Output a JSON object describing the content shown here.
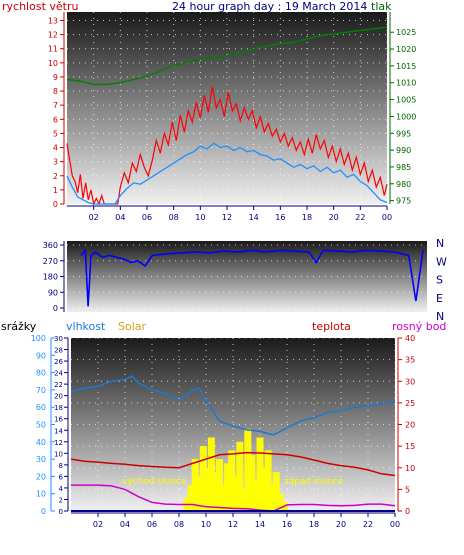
{
  "page": {
    "title": "24 hour graph day : 19 March 2014"
  },
  "colors": {
    "wind_speed": "#ff0000",
    "wind_gust": "#ff0000",
    "wind_avg": "#1e90ff",
    "pressure": "#008000",
    "direction": "#0000ff",
    "rain": "#00008b",
    "humidity": "#1e78d2",
    "solar": "#ffff00",
    "temperature": "#cc0000",
    "dew_point": "#cc00cc",
    "axis_left_top": "#cc0000",
    "axis_right_top": "#006400",
    "axis_left_bottom": "#1e90ff"
  },
  "chart_data": [
    {
      "type": "line",
      "panel": "wind-pressure",
      "title": "24 hour graph day : 19 March 2014",
      "left_axis_label": "rychlost větru",
      "right_axis_label": "tlak",
      "grid": true,
      "x_ticks": [
        "02",
        "04",
        "06",
        "08",
        "10",
        "12",
        "14",
        "16",
        "18",
        "20",
        "22",
        "00"
      ],
      "left_ticks": [
        0,
        1,
        2,
        3,
        4,
        5,
        6,
        7,
        8,
        9,
        10,
        11,
        12,
        13
      ],
      "right_ticks": [
        975,
        980,
        985,
        990,
        995,
        1000,
        1005,
        1010,
        1015,
        1020,
        1025
      ],
      "xlim": [
        0,
        24
      ],
      "ylim_left": [
        0,
        13.6
      ],
      "ylim_right": [
        974,
        1031
      ],
      "series": [
        {
          "name": "rychlost větru",
          "x": [
            0,
            0.2,
            0.4,
            0.6,
            0.8,
            1,
            1.2,
            1.4,
            1.6,
            1.8,
            2,
            2.2,
            2.4,
            2.6,
            2.8,
            3,
            3.2,
            3.4,
            3.6,
            3.8,
            4,
            4.3,
            4.6,
            4.9,
            5.2,
            5.5,
            5.8,
            6.1,
            6.4,
            6.7,
            7,
            7.3,
            7.6,
            7.9,
            8.2,
            8.5,
            8.8,
            9.1,
            9.4,
            9.7,
            10,
            10.3,
            10.6,
            10.9,
            11.2,
            11.5,
            11.8,
            12.1,
            12.4,
            12.7,
            13,
            13.3,
            13.6,
            13.9,
            14.2,
            14.5,
            14.8,
            15.1,
            15.4,
            15.7,
            16,
            16.3,
            16.6,
            16.9,
            17.2,
            17.5,
            17.8,
            18.1,
            18.4,
            18.7,
            19,
            19.3,
            19.6,
            19.9,
            20.2,
            20.5,
            20.8,
            21.1,
            21.4,
            21.7,
            22,
            22.3,
            22.6,
            22.9,
            23.2,
            23.5,
            23.8,
            24
          ],
          "values": [
            4.3,
            3.1,
            2.0,
            1.6,
            0.8,
            2.1,
            0.4,
            1.5,
            0.3,
            1.0,
            0.0,
            0.4,
            0.0,
            0.6,
            0.0,
            0.0,
            0.0,
            0.0,
            0.0,
            0.0,
            1.2,
            2.2,
            1.5,
            2.9,
            2.3,
            3.5,
            2.6,
            2.0,
            3.1,
            4.5,
            3.6,
            5.0,
            4.2,
            5.8,
            4.5,
            6.3,
            5.1,
            6.6,
            5.8,
            7.2,
            6.1,
            7.7,
            6.5,
            8.3,
            6.8,
            7.4,
            6.2,
            7.9,
            6.6,
            7.1,
            5.9,
            6.8,
            6.0,
            6.6,
            5.4,
            6.2,
            5.1,
            5.7,
            4.8,
            5.3,
            4.4,
            5.0,
            4.1,
            4.7,
            3.8,
            4.4,
            3.5,
            4.6,
            3.6,
            4.9,
            3.9,
            4.5,
            3.3,
            4.1,
            3.0,
            3.9,
            2.8,
            3.6,
            2.4,
            3.3,
            2.1,
            2.9,
            1.6,
            2.4,
            1.2,
            1.9,
            0.6,
            1.4
          ]
        },
        {
          "name": "průměr",
          "x": [
            0,
            0.4,
            0.8,
            1.2,
            1.6,
            2,
            2.4,
            2.8,
            3.2,
            3.6,
            4,
            4.5,
            5,
            5.5,
            6,
            6.5,
            7,
            7.5,
            8,
            8.5,
            9,
            9.5,
            10,
            10.5,
            11,
            11.5,
            12,
            12.5,
            13,
            13.5,
            14,
            14.5,
            15,
            15.5,
            16,
            16.5,
            17,
            17.5,
            18,
            18.5,
            19,
            19.5,
            20,
            20.5,
            21,
            21.5,
            22,
            22.5,
            23,
            23.5,
            24
          ],
          "values": [
            2.0,
            1.2,
            0.5,
            0.3,
            0.1,
            0.0,
            0.0,
            0.0,
            0.0,
            0.0,
            0.6,
            1.1,
            1.5,
            1.4,
            1.7,
            2.0,
            2.3,
            2.6,
            2.9,
            3.2,
            3.5,
            3.7,
            4.1,
            3.9,
            4.3,
            4.0,
            4.1,
            3.8,
            4.0,
            3.7,
            3.8,
            3.5,
            3.4,
            3.1,
            3.2,
            2.9,
            2.6,
            2.8,
            2.5,
            2.7,
            2.3,
            2.6,
            2.2,
            2.4,
            1.9,
            2.1,
            1.6,
            1.3,
            0.8,
            0.3,
            0.1
          ]
        },
        {
          "name": "tlak",
          "axis": "right",
          "x": [
            0,
            1,
            2,
            3,
            4,
            5,
            6,
            7,
            8,
            9,
            10,
            11,
            12,
            13,
            14,
            15,
            16,
            17,
            18,
            19,
            20,
            21,
            22,
            23,
            24
          ],
          "values": [
            1011,
            1010.5,
            1009.5,
            1009.5,
            1010,
            1011,
            1012,
            1013.5,
            1015,
            1016,
            1017,
            1017.5,
            1018,
            1019,
            1020,
            1021,
            1021.5,
            1022,
            1023,
            1024,
            1024.5,
            1025,
            1025.5,
            1026,
            1026.5
          ]
        }
      ]
    },
    {
      "type": "line",
      "panel": "direction",
      "right_labels": [
        "N",
        "W",
        "S",
        "E",
        "N"
      ],
      "left_ticks": [
        0,
        90,
        180,
        270,
        360
      ],
      "xlim": [
        0,
        24
      ],
      "ylim": [
        0,
        360
      ],
      "grid": true,
      "series": [
        {
          "name": "směr",
          "x": [
            0,
            0.3,
            0.5,
            0.7,
            1,
            1.5,
            2,
            2.5,
            3,
            3.5,
            4,
            4.5,
            5,
            6,
            7,
            8,
            9,
            10,
            11,
            12,
            12.5,
            13,
            14,
            15,
            16,
            16.5,
            17,
            18,
            19,
            20,
            21,
            22,
            23,
            23.5,
            24
          ],
          "values": [
            300,
            330,
            10,
            300,
            320,
            290,
            300,
            290,
            280,
            260,
            270,
            240,
            300,
            310,
            315,
            320,
            315,
            325,
            320,
            330,
            325,
            320,
            330,
            325,
            320,
            260,
            330,
            325,
            320,
            330,
            325,
            320,
            300,
            40,
            330
          ]
        }
      ]
    },
    {
      "type": "line",
      "panel": "humidity-solar-temperature",
      "labels": [
        "srážky",
        "vlhkost",
        "Solar",
        "teplota",
        "rosný bod"
      ],
      "annotations": [
        "východ slunce",
        "západ slunce"
      ],
      "x_ticks": [
        "02",
        "04",
        "06",
        "08",
        "10",
        "12",
        "14",
        "16",
        "18",
        "20",
        "22",
        "00"
      ],
      "rain_ticks": [
        0,
        10,
        20,
        30,
        40,
        50,
        60,
        70,
        80,
        90,
        100
      ],
      "temp_ticks_left": [
        0,
        2,
        4,
        6,
        8,
        10,
        12,
        14,
        16,
        18,
        20,
        22,
        24,
        26,
        28,
        30
      ],
      "right_ticks": [
        0,
        5,
        10,
        15,
        20,
        25,
        30,
        35,
        40
      ],
      "xlim": [
        0,
        24
      ],
      "grid": true,
      "series": [
        {
          "name": "vlhkost",
          "axis": "percent",
          "x": [
            0,
            1,
            2,
            3,
            4,
            4.5,
            5,
            5.5,
            6,
            7,
            7.5,
            8,
            8.5,
            9,
            9.5,
            10,
            10.5,
            11,
            12,
            13,
            14,
            15,
            16,
            17,
            18,
            19,
            20,
            21,
            22,
            23,
            24
          ],
          "values": [
            69,
            71,
            72,
            75,
            76,
            78,
            74,
            72,
            70,
            68,
            66,
            64,
            66,
            70,
            71,
            64,
            58,
            52,
            49,
            47,
            46,
            44,
            48,
            52,
            54,
            57,
            58,
            60,
            61,
            62,
            63
          ]
        },
        {
          "name": "teplota",
          "axis": "right",
          "x": [
            0,
            1,
            2,
            3,
            4,
            5,
            6,
            7,
            8,
            9,
            10,
            11,
            12,
            13,
            14,
            15,
            16,
            17,
            18,
            19,
            20,
            21,
            22,
            23,
            24
          ],
          "values": [
            12,
            11.5,
            11.3,
            11,
            10.8,
            10.5,
            10.3,
            10.1,
            10,
            11,
            12,
            13,
            13.2,
            13.5,
            13.4,
            13.2,
            13,
            12.5,
            11.8,
            11,
            10.5,
            10.1,
            9.5,
            8.6,
            8.2
          ]
        },
        {
          "name": "rosný bod",
          "axis": "right",
          "x": [
            0,
            1,
            2,
            3,
            4,
            5,
            6,
            7,
            8,
            9,
            10,
            11,
            12,
            13,
            14,
            15,
            16,
            17,
            18,
            19,
            20,
            21,
            22,
            23,
            24
          ],
          "values": [
            6,
            6,
            6,
            5.8,
            5,
            3.3,
            2,
            1.6,
            1.5,
            1.5,
            1,
            0.8,
            0.6,
            0.5,
            0.2,
            0,
            1.4,
            1.5,
            1.5,
            1.3,
            1.2,
            1.3,
            1.6,
            1.6,
            1.2
          ]
        },
        {
          "name": "Solar",
          "axis": "right",
          "x": [
            8.6,
            8.9,
            9.2,
            9.5,
            9.8,
            10.1,
            10.4,
            10.7,
            11.0,
            11.3,
            11.6,
            11.9,
            12.2,
            12.5,
            12.8,
            13.1,
            13.4,
            13.7,
            14.0,
            14.3,
            14.6,
            14.9,
            15.2,
            15.5,
            15.8,
            16.1
          ],
          "values": [
            3,
            6,
            12,
            8,
            15,
            10,
            17,
            9,
            12,
            6,
            11,
            14,
            8,
            16,
            5,
            19,
            13,
            7,
            17,
            10,
            14,
            6,
            9,
            4,
            2,
            0
          ]
        },
        {
          "name": "srážky",
          "axis": "percent",
          "x": [
            0,
            24
          ],
          "values": [
            0,
            0
          ]
        }
      ]
    }
  ]
}
